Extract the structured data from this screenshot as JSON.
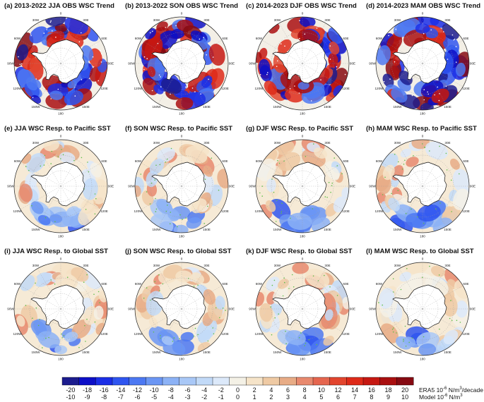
{
  "chart_data": {
    "type": "heatmap",
    "projection": "south-polar-stereographic",
    "panels": [
      {
        "id": "a",
        "title": "(a) 2013-2022 JJA OBS WSC Trend",
        "field": "obs",
        "season": "JJA"
      },
      {
        "id": "b",
        "title": "(b) 2013-2022 SON OBS WSC Trend",
        "field": "obs",
        "season": "SON"
      },
      {
        "id": "c",
        "title": "(c) 2014-2023 DJF OBS WSC Trend",
        "field": "obs",
        "season": "DJF"
      },
      {
        "id": "d",
        "title": "(d) 2014-2023 MAM OBS WSC Trend",
        "field": "obs",
        "season": "MAM"
      },
      {
        "id": "e",
        "title": "(e) JJA WSC Resp. to Pacific SST",
        "field": "model",
        "season": "JJA"
      },
      {
        "id": "f",
        "title": "(f) SON WSC Resp. to Pacific SST",
        "field": "model",
        "season": "SON"
      },
      {
        "id": "g",
        "title": "(g) DJF WSC Resp. to Pacific SST",
        "field": "model",
        "season": "DJF"
      },
      {
        "id": "h",
        "title": "(h) MAM WSC Resp. to Pacific SST",
        "field": "model",
        "season": "MAM"
      },
      {
        "id": "i",
        "title": "(i) JJA WSC Resp. to Global SST",
        "field": "model",
        "season": "JJA"
      },
      {
        "id": "j",
        "title": "(j) SON WSC Resp. to Global SST",
        "field": "model",
        "season": "SON"
      },
      {
        "id": "k",
        "title": "(k) DJF WSC Resp. to Global SST",
        "field": "model",
        "season": "DJF"
      },
      {
        "id": "l",
        "title": "(l) MAM WSC Resp. to Global SST",
        "field": "model",
        "season": "MAM"
      }
    ],
    "map_labels": {
      "lon_top": "0",
      "lon_bottom": "180",
      "lon_left": "90W",
      "lon_right": "90E",
      "lon_top_left": "30W",
      "lon_top_right": "30E",
      "lon_upper_left": "60W",
      "lon_upper_right": "60E",
      "lon_lower_left": "120W",
      "lon_lower_right": "120E",
      "lon_bottom_left": "150W",
      "lon_bottom_right": "150E"
    },
    "colorbar": {
      "era5_ticks": [
        "-20",
        "-18",
        "-16",
        "-14",
        "-12",
        "-10",
        "-8",
        "-6",
        "-4",
        "-2",
        "0",
        "2",
        "4",
        "6",
        "8",
        "10",
        "12",
        "14",
        "16",
        "18",
        "20"
      ],
      "model_ticks": [
        "-10",
        "-9",
        "-8",
        "-7",
        "-6",
        "-5",
        "-4",
        "-3",
        "-2",
        "-1",
        "0",
        "1",
        "2",
        "3",
        "4",
        "5",
        "6",
        "7",
        "8",
        "9",
        "10"
      ],
      "colors": [
        "#1c1c8e",
        "#0d0fc7",
        "#1b2ee6",
        "#2f55f0",
        "#4c78f2",
        "#6b96f4",
        "#8cb2f6",
        "#a9c8f7",
        "#c2daf8",
        "#dce9fa",
        "#f4f1e6",
        "#f6e4c9",
        "#efcaa4",
        "#e8ac86",
        "#e8896e",
        "#e5664f",
        "#e2452e",
        "#de2a19",
        "#c61812",
        "#a90f10",
        "#860a12"
      ],
      "era5_unit_label": "ERA5 10",
      "era5_unit_exp": "-6",
      "era5_unit_mid": " N/m",
      "era5_unit_exp2": "3",
      "era5_unit_tail": "/decade",
      "model_unit_label": "Model 10",
      "model_unit_exp": "-6",
      "model_unit_mid": " N/m",
      "model_unit_exp2": "3",
      "model_unit_tail": ""
    }
  }
}
